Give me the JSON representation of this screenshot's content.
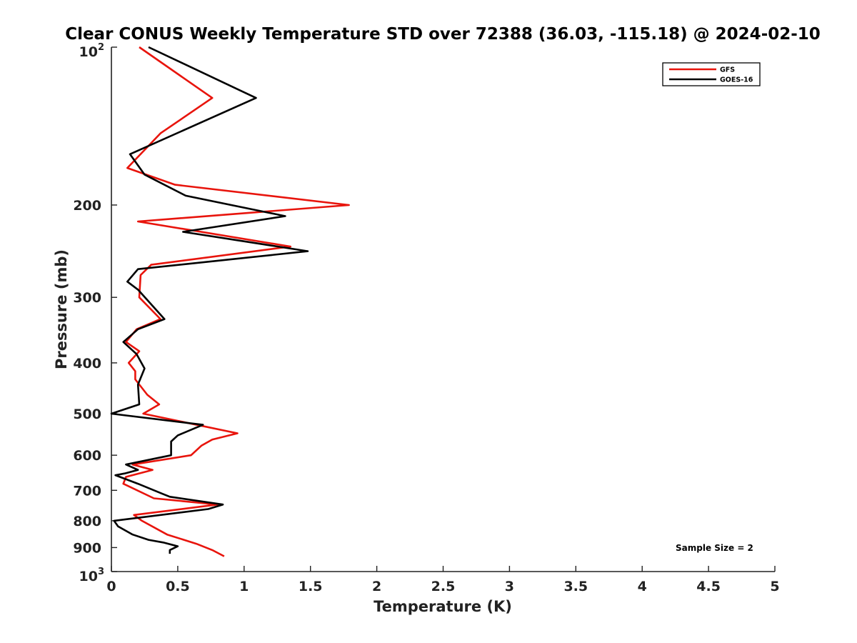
{
  "chart_data": {
    "type": "line",
    "title": "Clear CONUS Weekly Temperature STD over 72388 (36.03, -115.18) @ 2024-02-10",
    "xlabel": "Temperature (K)",
    "ylabel": "Pressure (mb)",
    "xlim": [
      0,
      5
    ],
    "ylim": [
      100,
      1000
    ],
    "y_scale": "log",
    "y_reversed": true,
    "grid": false,
    "legend_position": "top-right",
    "x_ticks": [
      {
        "value": 0,
        "label": "0"
      },
      {
        "value": 0.5,
        "label": "0.5"
      },
      {
        "value": 1,
        "label": "1"
      },
      {
        "value": 1.5,
        "label": "1.5"
      },
      {
        "value": 2,
        "label": "2"
      },
      {
        "value": 2.5,
        "label": "2.5"
      },
      {
        "value": 3,
        "label": "3"
      },
      {
        "value": 3.5,
        "label": "3.5"
      },
      {
        "value": 4,
        "label": "4"
      },
      {
        "value": 4.5,
        "label": "4.5"
      },
      {
        "value": 5,
        "label": "5"
      }
    ],
    "y_ticks": [
      {
        "value": 100,
        "base": "10",
        "exp": "2"
      },
      {
        "value": 200,
        "label": "200"
      },
      {
        "value": 300,
        "label": "300"
      },
      {
        "value": 400,
        "label": "400"
      },
      {
        "value": 500,
        "label": "500"
      },
      {
        "value": 600,
        "label": "600"
      },
      {
        "value": 700,
        "label": "700"
      },
      {
        "value": 800,
        "label": "800"
      },
      {
        "value": 900,
        "label": "900"
      },
      {
        "value": 1000,
        "base": "10",
        "exp": "3"
      }
    ],
    "annotation": "Sample Size = 2",
    "series": [
      {
        "name": "GFS",
        "color": "#e8140c",
        "points": [
          [
            0.21,
            100
          ],
          [
            0.76,
            125
          ],
          [
            0.37,
            146
          ],
          [
            0.12,
            170
          ],
          [
            0.48,
            183
          ],
          [
            1.79,
            200
          ],
          [
            0.2,
            215
          ],
          [
            1.35,
            240
          ],
          [
            0.3,
            260
          ],
          [
            0.22,
            272
          ],
          [
            0.21,
            300
          ],
          [
            0.37,
            330
          ],
          [
            0.19,
            345
          ],
          [
            0.11,
            365
          ],
          [
            0.21,
            380
          ],
          [
            0.13,
            400
          ],
          [
            0.18,
            415
          ],
          [
            0.18,
            430
          ],
          [
            0.27,
            460
          ],
          [
            0.36,
            480
          ],
          [
            0.24,
            500
          ],
          [
            0.95,
            545
          ],
          [
            0.76,
            560
          ],
          [
            0.68,
            575
          ],
          [
            0.6,
            600
          ],
          [
            0.16,
            625
          ],
          [
            0.31,
            640
          ],
          [
            0.11,
            660
          ],
          [
            0.09,
            680
          ],
          [
            0.32,
            725
          ],
          [
            0.8,
            745
          ],
          [
            0.17,
            780
          ],
          [
            0.23,
            800
          ],
          [
            0.42,
            850
          ],
          [
            0.64,
            885
          ],
          [
            0.76,
            910
          ],
          [
            0.85,
            935
          ]
        ]
      },
      {
        "name": "GOES-16",
        "color": "#000000",
        "points": [
          [
            0.28,
            100
          ],
          [
            1.09,
            125
          ],
          [
            0.14,
            160
          ],
          [
            0.25,
            175
          ],
          [
            0.56,
            192
          ],
          [
            1.31,
            210
          ],
          [
            0.54,
            225
          ],
          [
            1.48,
            245
          ],
          [
            0.2,
            265
          ],
          [
            0.12,
            280
          ],
          [
            0.2,
            290
          ],
          [
            0.4,
            330
          ],
          [
            0.2,
            345
          ],
          [
            0.09,
            365
          ],
          [
            0.19,
            385
          ],
          [
            0.25,
            410
          ],
          [
            0.2,
            440
          ],
          [
            0.21,
            480
          ],
          [
            0.0,
            500
          ],
          [
            0.69,
            525
          ],
          [
            0.5,
            550
          ],
          [
            0.45,
            565
          ],
          [
            0.45,
            600
          ],
          [
            0.11,
            625
          ],
          [
            0.2,
            640
          ],
          [
            0.1,
            650
          ],
          [
            0.03,
            655
          ],
          [
            0.2,
            680
          ],
          [
            0.38,
            710
          ],
          [
            0.44,
            720
          ],
          [
            0.84,
            745
          ],
          [
            0.73,
            760
          ],
          [
            0.02,
            800
          ],
          [
            0.05,
            820
          ],
          [
            0.16,
            850
          ],
          [
            0.28,
            870
          ],
          [
            0.39,
            880
          ],
          [
            0.5,
            895
          ],
          [
            0.44,
            910
          ],
          [
            0.44,
            925
          ]
        ]
      }
    ]
  }
}
